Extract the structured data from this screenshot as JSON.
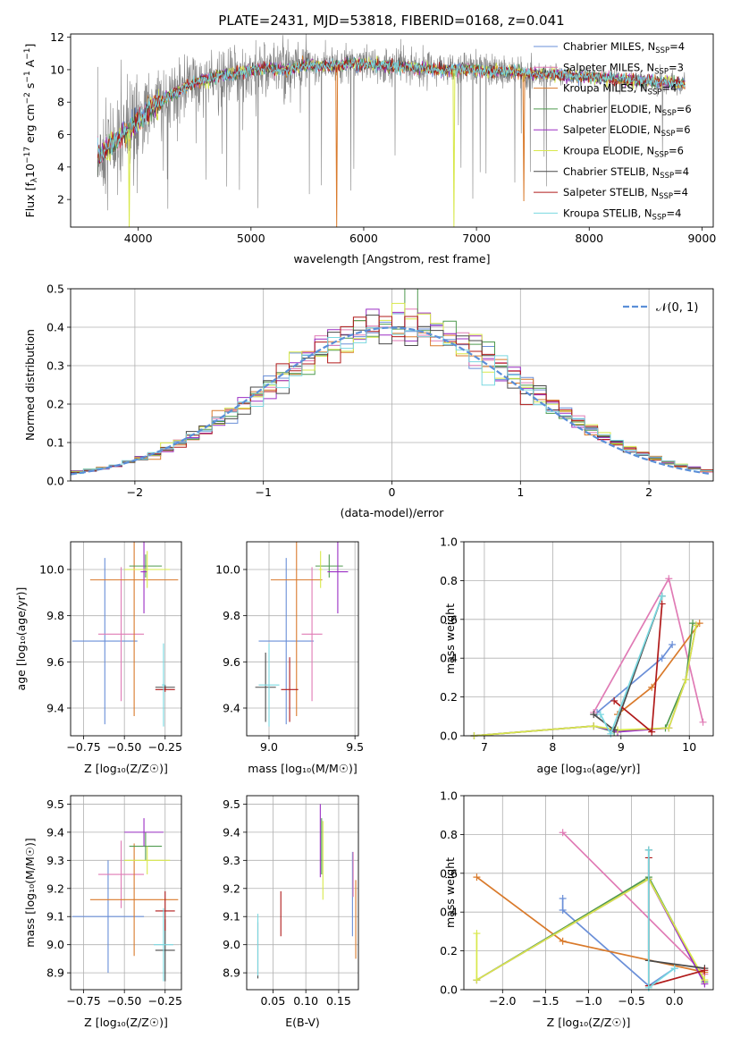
{
  "figure_title": "PLATE=2431, MJD=53818, FIBERID=0168, z=0.041",
  "colors": {
    "Chabrier MILES": "#6a8fd8",
    "Salpeter MILES": "#e07bb5",
    "Kroupa MILES": "#d97a2b",
    "Chabrier ELODIE": "#4f9a4f",
    "Salpeter ELODIE": "#9b2fc4",
    "Kroupa ELODIE": "#d8e84a",
    "Chabrier STELIB": "#4a4a4a",
    "Salpeter STELIB": "#b01a1a",
    "Kroupa STELIB": "#7ad8e0",
    "data": "#808080",
    "normal_curve": "#5b8fd8"
  },
  "legend_main": [
    {
      "key": "Chabrier MILES",
      "pre": "Chabrier MILES, N",
      "sub": "SSP",
      "post": "=4"
    },
    {
      "key": "Salpeter MILES",
      "pre": "Salpeter MILES, N",
      "sub": "SSP",
      "post": "=3"
    },
    {
      "key": "Kroupa MILES",
      "pre": "Kroupa MILES, N",
      "sub": "SSP",
      "post": "=4"
    },
    {
      "key": "Chabrier ELODIE",
      "pre": "Chabrier ELODIE, N",
      "sub": "SSP",
      "post": "=6"
    },
    {
      "key": "Salpeter ELODIE",
      "pre": "Salpeter ELODIE, N",
      "sub": "SSP",
      "post": "=6"
    },
    {
      "key": "Kroupa ELODIE",
      "pre": "Kroupa ELODIE, N",
      "sub": "SSP",
      "post": "=6"
    },
    {
      "key": "Chabrier STELIB",
      "pre": "Chabrier STELIB, N",
      "sub": "SSP",
      "post": "=4"
    },
    {
      "key": "Salpeter STELIB",
      "pre": "Salpeter STELIB, N",
      "sub": "SSP",
      "post": "=4"
    },
    {
      "key": "Kroupa STELIB",
      "pre": "Kroupa STELIB, N",
      "sub": "SSP",
      "post": "=4"
    }
  ],
  "chart_data": [
    {
      "id": "spectrum",
      "type": "line",
      "xlabel": "wavelength [Angstrom, rest frame]",
      "ylabel": {
        "pre": "Flux [f",
        "sub": "λ",
        "mid": "10",
        "sup1": "−17",
        "mid2": " erg cm",
        "sup2": "−2",
        "mid3": " s",
        "sup3": "−1",
        "mid4": " A",
        "sup4": "−1",
        "post": "]"
      },
      "xlim": [
        3400,
        9100
      ],
      "ylim": [
        0.3,
        12.2
      ],
      "xticks": [
        4000,
        5000,
        6000,
        7000,
        8000,
        9000
      ],
      "yticks": [
        2,
        4,
        6,
        8,
        10,
        12
      ],
      "grid": false,
      "legend": "top-right",
      "continuum_x": [
        3640,
        3800,
        3950,
        4100,
        4300,
        4500,
        4700,
        4900,
        5100,
        5300,
        5500,
        5700,
        5900,
        6100,
        6300,
        6500,
        6700,
        6900,
        7100,
        7300,
        7500,
        7700,
        7900,
        8100,
        8300,
        8500,
        8700,
        8850
      ],
      "continuum_y": [
        4.6,
        5.6,
        6.5,
        7.6,
        8.5,
        9.2,
        9.6,
        9.8,
        10.1,
        10.0,
        10.3,
        10.2,
        10.4,
        10.3,
        10.2,
        10.1,
        10.0,
        10.0,
        9.9,
        9.9,
        9.7,
        9.7,
        9.6,
        9.5,
        9.4,
        9.3,
        9.2,
        9.1
      ],
      "model_dips": [
        {
          "x": 5760,
          "y": 0.3,
          "series": "Kroupa MILES"
        },
        {
          "x": 6800,
          "y": 0.3,
          "series": "Kroupa ELODIE"
        },
        {
          "x": 7420,
          "y": 1.9,
          "series": "Kroupa MILES"
        },
        {
          "x": 3920,
          "y": 0.3,
          "series": "Kroupa ELODIE"
        }
      ]
    },
    {
      "id": "residuals",
      "type": "histogram",
      "xlabel": "(data-model)/error",
      "ylabel": "Normed distribution",
      "xlim": [
        -2.5,
        2.5
      ],
      "ylim": [
        0.0,
        0.5
      ],
      "xticks": [
        -2,
        -1,
        0,
        1,
        2
      ],
      "yticks": [
        0.0,
        0.1,
        0.2,
        0.3,
        0.4,
        0.5
      ],
      "grid": true,
      "legend": "top-right",
      "legend_label": "𝒩(0, 1)",
      "bin_width": 0.1,
      "normal_curve": {
        "mean": 0.0,
        "sigma": 1.0
      }
    },
    {
      "id": "age-vs-Z",
      "type": "errorbar",
      "xlabel": "Z [log10(Z/Z☉)]",
      "ylabel": "age [log10(age/yr)]",
      "xlim": [
        -0.83,
        -0.15
      ],
      "ylim": [
        9.28,
        10.12
      ],
      "xticks": [
        -0.75,
        -0.5,
        -0.25
      ],
      "yticks": [
        9.4,
        9.6,
        9.8,
        10.0
      ],
      "grid": true,
      "points": [
        {
          "s": "Chabrier MILES",
          "x": -0.62,
          "xerr": 0.2,
          "y": 9.69,
          "yerr": 0.36
        },
        {
          "s": "Salpeter MILES",
          "x": -0.52,
          "xerr": 0.14,
          "y": 9.72,
          "yerr": 0.29
        },
        {
          "s": "Kroupa MILES",
          "x": -0.44,
          "xerr": 0.27,
          "y": 9.955,
          "yerr": 0.59
        },
        {
          "s": "Chabrier ELODIE",
          "x": -0.37,
          "xerr": 0.1,
          "y": 10.015,
          "yerr": 0.05
        },
        {
          "s": "Salpeter ELODIE",
          "x": -0.38,
          "xerr": 0.02,
          "y": 9.99,
          "yerr": 0.18
        },
        {
          "s": "Kroupa ELODIE",
          "x": -0.36,
          "xerr": 0.14,
          "y": 10.0,
          "yerr": 0.08
        },
        {
          "s": "Chabrier STELIB",
          "x": -0.25,
          "xerr": 0.06,
          "y": 9.49,
          "yerr": 0.01
        },
        {
          "s": "Salpeter STELIB",
          "x": -0.25,
          "xerr": 0.06,
          "y": 9.48,
          "yerr": 0.01
        },
        {
          "s": "Kroupa STELIB",
          "x": -0.26,
          "xerr": 0.01,
          "y": 9.5,
          "yerr": 0.18
        }
      ]
    },
    {
      "id": "age-vs-mass",
      "type": "errorbar",
      "xlabel": "mass [log10(M/M☉)]",
      "ylabel": "",
      "xlim": [
        8.87,
        9.52
      ],
      "ylim": [
        9.28,
        10.12
      ],
      "xticks": [
        9.0,
        9.5
      ],
      "yticks": [
        9.4,
        9.6,
        9.8,
        10.0
      ],
      "grid": true,
      "points": [
        {
          "s": "Chabrier MILES",
          "x": 9.1,
          "xerr": 0.16,
          "y": 9.69,
          "yerr": 0.36
        },
        {
          "s": "Salpeter MILES",
          "x": 9.25,
          "xerr": 0.06,
          "y": 9.72,
          "yerr": 0.29
        },
        {
          "s": "Kroupa MILES",
          "x": 9.16,
          "xerr": 0.15,
          "y": 9.955,
          "yerr": 0.59
        },
        {
          "s": "Chabrier ELODIE",
          "x": 9.35,
          "xerr": 0.08,
          "y": 10.015,
          "yerr": 0.05
        },
        {
          "s": "Salpeter ELODIE",
          "x": 9.4,
          "xerr": 0.06,
          "y": 9.99,
          "yerr": 0.18
        },
        {
          "s": "Kroupa ELODIE",
          "x": 9.3,
          "xerr": 0.01,
          "y": 10.0,
          "yerr": 0.08
        },
        {
          "s": "Chabrier STELIB",
          "x": 8.98,
          "xerr": 0.06,
          "y": 9.49,
          "yerr": 0.15
        },
        {
          "s": "Salpeter STELIB",
          "x": 9.12,
          "xerr": 0.05,
          "y": 9.48,
          "yerr": 0.14
        },
        {
          "s": "Kroupa STELIB",
          "x": 9.0,
          "xerr": 0.06,
          "y": 9.5,
          "yerr": 0.18
        }
      ]
    },
    {
      "id": "mass-weight-vs-age",
      "type": "line",
      "xlabel": "age [log10(age/yr)]",
      "ylabel": "mass weight",
      "xlim": [
        6.7,
        10.35
      ],
      "ylim": [
        0.0,
        1.0
      ],
      "xticks": [
        7,
        8,
        9,
        10
      ],
      "yticks": [
        0.0,
        0.2,
        0.4,
        0.6,
        0.8,
        1.0
      ],
      "grid": true,
      "series": [
        {
          "s": "Chabrier MILES",
          "x": [
            8.65,
            9.6,
            9.75
          ],
          "y": [
            0.12,
            0.4,
            0.47
          ]
        },
        {
          "s": "Salpeter MILES",
          "x": [
            8.6,
            9.7,
            10.2
          ],
          "y": [
            0.12,
            0.81,
            0.07
          ]
        },
        {
          "s": "Kroupa MILES",
          "x": [
            8.95,
            9.45,
            10.15
          ],
          "y": [
            0.11,
            0.25,
            0.58
          ]
        },
        {
          "s": "Chabrier ELODIE",
          "x": [
            6.85,
            8.6,
            8.9,
            9.65,
            9.95,
            10.05
          ],
          "y": [
            0.0,
            0.05,
            0.02,
            0.04,
            0.29,
            0.58
          ]
        },
        {
          "s": "Salpeter ELODIE",
          "x": [
            6.85,
            8.6,
            8.95,
            9.7,
            9.95,
            10.1
          ],
          "y": [
            0.0,
            0.05,
            0.02,
            0.04,
            0.29,
            0.57
          ]
        },
        {
          "s": "Kroupa ELODIE",
          "x": [
            6.85,
            8.6,
            8.95,
            9.7,
            9.95,
            10.1
          ],
          "y": [
            0.0,
            0.05,
            0.03,
            0.04,
            0.29,
            0.57
          ]
        },
        {
          "s": "Chabrier STELIB",
          "x": [
            8.6,
            8.9,
            9.6
          ],
          "y": [
            0.11,
            0.03,
            0.72
          ]
        },
        {
          "s": "Salpeter STELIB",
          "x": [
            8.9,
            9.45,
            9.6
          ],
          "y": [
            0.18,
            0.02,
            0.68
          ]
        },
        {
          "s": "Kroupa STELIB",
          "x": [
            8.7,
            8.85,
            9.6
          ],
          "y": [
            0.11,
            0.01,
            0.72
          ]
        }
      ]
    },
    {
      "id": "mass-vs-Z",
      "type": "errorbar",
      "xlabel": "Z [log10(Z/Z☉)]",
      "ylabel": "mass [log10(M/M☉)]",
      "xlim": [
        -0.83,
        -0.15
      ],
      "ylim": [
        8.84,
        9.53
      ],
      "xticks": [
        -0.75,
        -0.5,
        -0.25
      ],
      "yticks": [
        8.9,
        9.0,
        9.1,
        9.2,
        9.3,
        9.4,
        9.5
      ],
      "grid": true,
      "points": [
        {
          "s": "Chabrier MILES",
          "x": -0.6,
          "xerr": 0.22,
          "y": 9.1,
          "yerr": 0.2
        },
        {
          "s": "Salpeter MILES",
          "x": -0.52,
          "xerr": 0.14,
          "y": 9.25,
          "yerr": 0.12
        },
        {
          "s": "Kroupa MILES",
          "x": -0.44,
          "xerr": 0.27,
          "y": 9.16,
          "yerr": 0.2
        },
        {
          "s": "Chabrier ELODIE",
          "x": -0.37,
          "xerr": 0.1,
          "y": 9.35,
          "yerr": 0.05
        },
        {
          "s": "Salpeter ELODIE",
          "x": -0.38,
          "xerr": 0.12,
          "y": 9.4,
          "yerr": 0.05
        },
        {
          "s": "Kroupa ELODIE",
          "x": -0.36,
          "xerr": 0.14,
          "y": 9.3,
          "yerr": 0.05
        },
        {
          "s": "Chabrier STELIB",
          "x": -0.25,
          "xerr": 0.06,
          "y": 8.98,
          "yerr": 0.11
        },
        {
          "s": "Salpeter STELIB",
          "x": -0.25,
          "xerr": 0.06,
          "y": 9.12,
          "yerr": 0.07
        },
        {
          "s": "Kroupa STELIB",
          "x": -0.26,
          "xerr": 0.06,
          "y": 9.0,
          "yerr": 0.13
        }
      ]
    },
    {
      "id": "mass-vs-ebv",
      "type": "errorbar",
      "xlabel": "E(B-V)",
      "ylabel": "",
      "xlim": [
        0.01,
        0.18
      ],
      "ylim": [
        8.84,
        9.53
      ],
      "xticks": [
        0.05,
        0.1,
        0.15
      ],
      "yticks": [
        8.9,
        9.0,
        9.1,
        9.2,
        9.3,
        9.4,
        9.5
      ],
      "grid": true,
      "points": [
        {
          "s": "Chabrier MILES",
          "x": 0.171,
          "xerr": 0.0,
          "y": 9.18,
          "yerr": 0.15
        },
        {
          "s": "Salpeter MILES",
          "x": 0.172,
          "xerr": 0.0,
          "y": 9.25,
          "yerr": 0.08
        },
        {
          "s": "Kroupa MILES",
          "x": 0.176,
          "xerr": 0.0,
          "y": 9.09,
          "yerr": 0.14
        },
        {
          "s": "Chabrier ELODIE",
          "x": 0.124,
          "xerr": 0.0,
          "y": 9.35,
          "yerr": 0.1
        },
        {
          "s": "Salpeter ELODIE",
          "x": 0.122,
          "xerr": 0.0,
          "y": 9.37,
          "yerr": 0.13
        },
        {
          "s": "Kroupa ELODIE",
          "x": 0.126,
          "xerr": 0.0,
          "y": 9.3,
          "yerr": 0.14
        },
        {
          "s": "Chabrier STELIB",
          "x": 0.027,
          "xerr": 0.0,
          "y": 8.98,
          "yerr": 0.1
        },
        {
          "s": "Salpeter STELIB",
          "x": 0.062,
          "xerr": 0.0,
          "y": 9.11,
          "yerr": 0.08
        },
        {
          "s": "Kroupa STELIB",
          "x": 0.027,
          "xerr": 0.0,
          "y": 9.0,
          "yerr": 0.11
        }
      ]
    },
    {
      "id": "mass-weight-vs-Z",
      "type": "line",
      "xlabel": "Z [log10(Z/Z☉)]",
      "ylabel": "mass weight",
      "xlim": [
        -2.45,
        0.45
      ],
      "ylim": [
        0.0,
        1.0
      ],
      "xticks": [
        -2.0,
        -1.5,
        -1.0,
        -0.5,
        0.0
      ],
      "yticks": [
        0.0,
        0.2,
        0.4,
        0.6,
        0.8,
        1.0
      ],
      "grid": true,
      "series": [
        {
          "s": "Chabrier MILES",
          "x": [
            -1.3,
            -1.3,
            -0.3,
            0.0
          ],
          "y": [
            0.47,
            0.41,
            0.02,
            0.11
          ]
        },
        {
          "s": "Salpeter MILES",
          "x": [
            -1.3,
            0.35
          ],
          "y": [
            0.81,
            0.08
          ]
        },
        {
          "s": "Kroupa MILES",
          "x": [
            -2.3,
            -1.3,
            0.35
          ],
          "y": [
            0.58,
            0.25,
            0.09
          ]
        },
        {
          "s": "Chabrier ELODIE",
          "x": [
            -2.3,
            -0.3,
            0.35
          ],
          "y": [
            0.05,
            0.58,
            0.04
          ]
        },
        {
          "s": "Salpeter ELODIE",
          "x": [
            -2.3,
            -0.3,
            0.35
          ],
          "y": [
            0.05,
            0.57,
            0.03
          ]
        },
        {
          "s": "Kroupa ELODIE",
          "x": [
            -2.3,
            -2.3,
            -0.3,
            0.35
          ],
          "y": [
            0.29,
            0.05,
            0.57,
            0.05
          ]
        },
        {
          "s": "Chabrier STELIB",
          "x": [
            -0.3,
            -0.3,
            0.35
          ],
          "y": [
            0.72,
            0.15,
            0.11
          ]
        },
        {
          "s": "Salpeter STELIB",
          "x": [
            -0.3,
            -0.3,
            0.35
          ],
          "y": [
            0.68,
            0.02,
            0.1
          ]
        },
        {
          "s": "Kroupa STELIB",
          "x": [
            -0.3,
            -0.3,
            0.0
          ],
          "y": [
            0.72,
            0.01,
            0.11
          ]
        }
      ]
    }
  ]
}
